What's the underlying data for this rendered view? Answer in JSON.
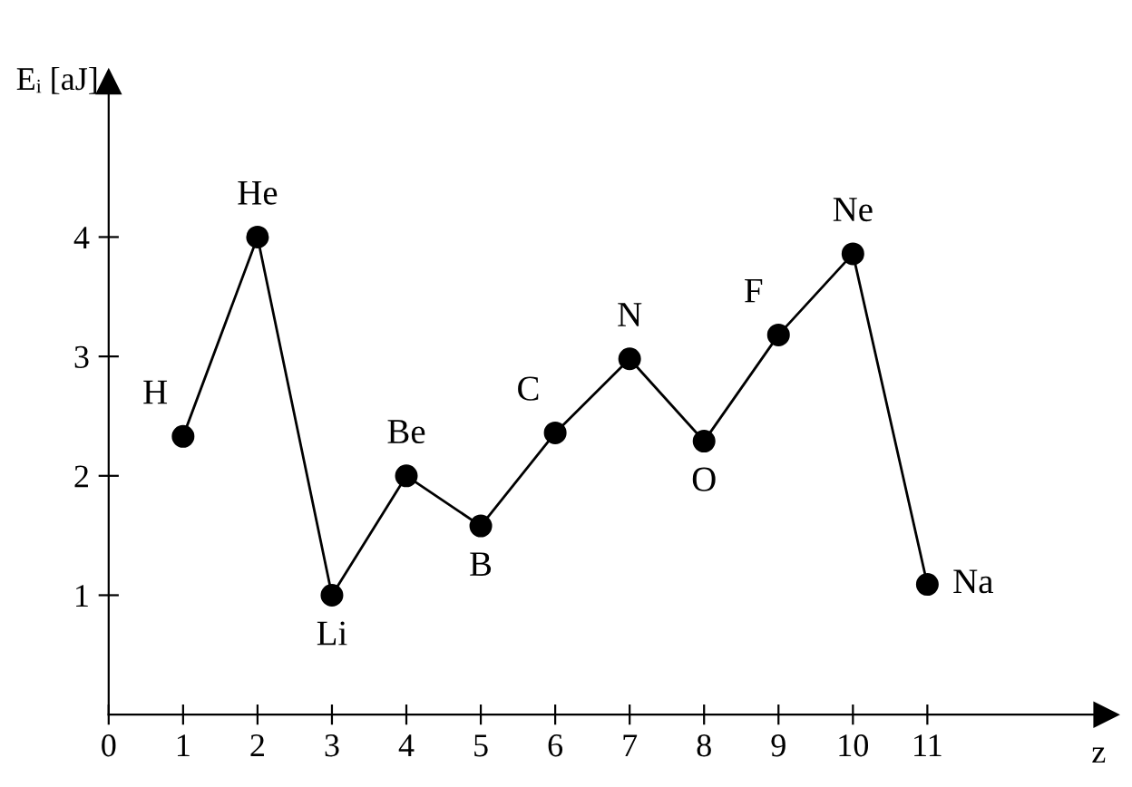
{
  "chart_data": {
    "type": "line",
    "xlabel": "z",
    "ylabel": "Eᵢ [aJ]",
    "x": [
      1,
      2,
      3,
      4,
      5,
      6,
      7,
      8,
      9,
      10,
      11
    ],
    "series": [
      {
        "color": "#000000",
        "values": [
          2.33,
          4.0,
          1.0,
          2.0,
          1.58,
          2.36,
          2.98,
          2.29,
          3.18,
          3.86,
          1.09
        ]
      }
    ],
    "annotations": [
      {
        "text": "H",
        "x": 1,
        "y": 2.33
      },
      {
        "text": "He",
        "x": 2,
        "y": 4.0
      },
      {
        "text": "Li",
        "x": 3,
        "y": 1.0
      },
      {
        "text": "Be",
        "x": 4,
        "y": 2.0
      },
      {
        "text": "B",
        "x": 5,
        "y": 1.58
      },
      {
        "text": "C",
        "x": 6,
        "y": 2.36
      },
      {
        "text": "N",
        "x": 7,
        "y": 2.98
      },
      {
        "text": "O",
        "x": 8,
        "y": 2.29
      },
      {
        "text": "F",
        "x": 9,
        "y": 3.18
      },
      {
        "text": "Ne",
        "x": 10,
        "y": 3.86
      },
      {
        "text": "Na",
        "x": 11,
        "y": 1.09
      }
    ],
    "xlim": [
      0,
      13.4
    ],
    "ylim": [
      0,
      5.3
    ],
    "xticks": [
      0,
      1,
      2,
      3,
      4,
      5,
      6,
      7,
      8,
      9,
      10,
      11
    ],
    "yticks": [
      1,
      2,
      3,
      4
    ],
    "grid": false,
    "marker": "circle",
    "line_style": "solid"
  }
}
